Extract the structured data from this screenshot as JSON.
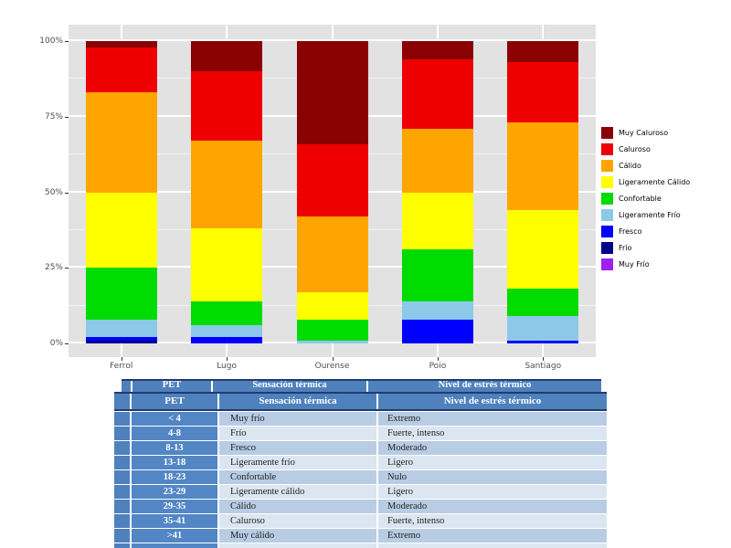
{
  "colors": {
    "panel-gray": "#E2E2E2",
    "axis-text": "#4d4d4d",
    "header-blue": "#4F81BD",
    "pet-blue": "#5286C5",
    "row-a": "#B8CCE4",
    "row-b": "#DCE6F1",
    "border-dark": "#1F3C6E"
  },
  "chart_data": {
    "type": "bar",
    "stacked": true,
    "units": "percent",
    "title": "",
    "xlabel": "",
    "ylabel": "",
    "ylim": [
      0,
      100
    ],
    "grid": true,
    "legend_position": "right",
    "categories": [
      "Ferrol",
      "Lugo",
      "Ourense",
      "Poio",
      "Santiago"
    ],
    "y_ticks": [
      {
        "value": 0,
        "label": "0%"
      },
      {
        "value": 25,
        "label": "25%"
      },
      {
        "value": 50,
        "label": "50%"
      },
      {
        "value": 75,
        "label": "75%"
      },
      {
        "value": 100,
        "label": "100%"
      }
    ],
    "series_bottom_to_top": [
      {
        "name": "Muy Frío",
        "color": "#A020F0",
        "values": [
          0,
          0,
          0,
          0,
          0
        ]
      },
      {
        "name": "Frío",
        "color": "#00008B",
        "values": [
          1,
          0,
          0,
          0,
          0
        ]
      },
      {
        "name": "Fresco",
        "color": "#0000FF",
        "values": [
          1,
          2,
          0,
          8,
          1
        ]
      },
      {
        "name": "Ligeramente Frío",
        "color": "#8CC9E8",
        "values": [
          6,
          4,
          1,
          6,
          8
        ]
      },
      {
        "name": "Confortable",
        "color": "#00DB00",
        "values": [
          17,
          8,
          7,
          17,
          9
        ]
      },
      {
        "name": "Ligeramente Cálido",
        "color": "#FFFF00",
        "values": [
          25,
          24,
          9,
          19,
          26
        ]
      },
      {
        "name": "Cálido",
        "color": "#FFA500",
        "values": [
          33,
          29,
          25,
          21,
          29
        ]
      },
      {
        "name": "Caluroso",
        "color": "#EE0000",
        "values": [
          15,
          23,
          24,
          23,
          20
        ]
      },
      {
        "name": "Muy Caluroso",
        "color": "#8B0000",
        "values": [
          2,
          10,
          34,
          6,
          7
        ]
      }
    ],
    "legend_top_to_bottom": [
      "Muy Caluroso",
      "Caluroso",
      "Cálido",
      "Ligeramente Cálido",
      "Confortable",
      "Ligeramente Frío",
      "Fresco",
      "Frío",
      "Muy Frío"
    ]
  },
  "table": {
    "ghost_header": {
      "pet": "PET",
      "sensacion": "Sensación térmica",
      "nivel": "Nivel de estrés térmico"
    },
    "header": {
      "pet": "PET",
      "sensacion": "Sensación térmica",
      "nivel": "Nivel de estrés térmico"
    },
    "rows": [
      {
        "pet": "< 4",
        "sensacion": "Muy frío",
        "nivel": "Extremo"
      },
      {
        "pet": "4-8",
        "sensacion": "Frío",
        "nivel": "Fuerte, intenso"
      },
      {
        "pet": "8-13",
        "sensacion": "Fresco",
        "nivel": "Moderado"
      },
      {
        "pet": "13-18",
        "sensacion": "Ligeramente frío",
        "nivel": "Ligero"
      },
      {
        "pet": "18-23",
        "sensacion": "Confortable",
        "nivel": "Nulo"
      },
      {
        "pet": "23-29",
        "sensacion": "Ligeramente cálido",
        "nivel": "Ligero"
      },
      {
        "pet": "29-35",
        "sensacion": "Cálido",
        "nivel": "Moderado"
      },
      {
        "pet": "35-41",
        "sensacion": "Caluroso",
        "nivel": "Fuerte, intenso"
      },
      {
        "pet": ">41",
        "sensacion": "Muy cálido",
        "nivel": "Extremo"
      }
    ]
  }
}
